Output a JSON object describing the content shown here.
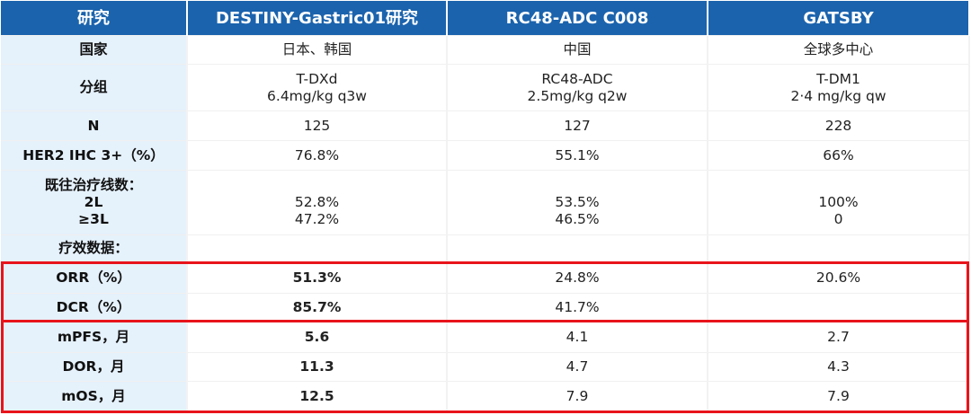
{
  "headers": [
    "研究",
    "DESTINY-Gastric01研究",
    "RC48-ADC C008",
    "GATSBY"
  ],
  "rows": [
    {
      "label": "国家",
      "cells": [
        "日本、韩国",
        "中国",
        "全球多中心"
      ]
    },
    {
      "label": "分组",
      "cells": [
        "T-DXd\n6.4mg/kg q3w",
        "RC48-ADC\n2.5mg/kg q2w",
        "T-DM1\n2·4 mg/kg qw"
      ]
    },
    {
      "label": "N",
      "cells": [
        "125",
        "127",
        "228"
      ]
    },
    {
      "label": "HER2 IHC 3+（%）",
      "cells": [
        "76.8%",
        "55.1%",
        "66%"
      ]
    },
    {
      "label": "既往治疗线数：\n2L\n≥3L",
      "cells": [
        "\n52.8%\n47.2%",
        "\n53.5%\n46.5%",
        "\n100%\n0"
      ]
    },
    {
      "label": "疗效数据：",
      "cells": [
        "",
        "",
        ""
      ]
    },
    {
      "label": "ORR（%）",
      "cells": [
        "51.3%",
        "24.8%",
        "20.6%"
      ]
    },
    {
      "label": "DCR（%）",
      "cells": [
        "85.7%",
        "41.7%",
        ""
      ]
    },
    {
      "label": "mPFS，月",
      "cells": [
        "5.6",
        "4.1",
        "2.7"
      ]
    },
    {
      "label": "DOR，月",
      "cells": [
        "11.3",
        "4.7",
        "4.3"
      ]
    },
    {
      "label": "mOS，月",
      "cells": [
        "12.5",
        "7.9",
        "7.9"
      ]
    }
  ],
  "colors": {
    "header": "#1b63ad",
    "label_bg": "#e5f1fb",
    "highlight": "#e8141b"
  }
}
